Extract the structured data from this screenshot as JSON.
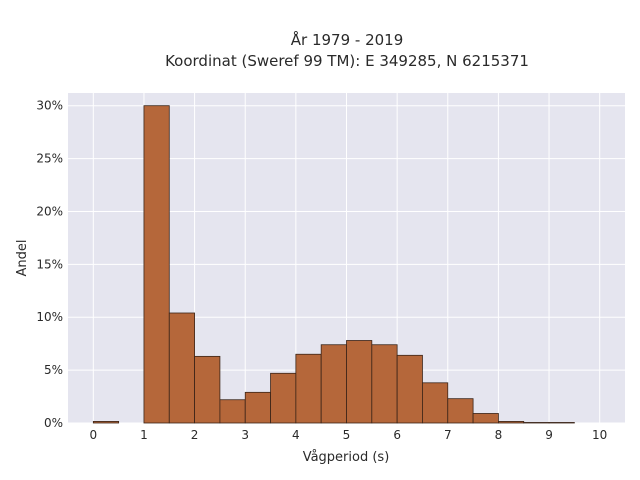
{
  "chart_data": {
    "type": "bar",
    "title_line1": "År 1979 - 2019",
    "title_line2": "Koordinat (Sweref 99 TM): E 349285, N 6215371",
    "xlabel": "Vågperiod (s)",
    "ylabel": "Andel",
    "bin_width": 0.5,
    "bins": [
      {
        "x0": 0.0,
        "value": 0.15
      },
      {
        "x0": 0.5,
        "value": 0.0
      },
      {
        "x0": 1.0,
        "value": 30.0
      },
      {
        "x0": 1.5,
        "value": 10.4
      },
      {
        "x0": 2.0,
        "value": 6.3
      },
      {
        "x0": 2.5,
        "value": 2.2
      },
      {
        "x0": 3.0,
        "value": 2.9
      },
      {
        "x0": 3.5,
        "value": 4.7
      },
      {
        "x0": 4.0,
        "value": 6.5
      },
      {
        "x0": 4.5,
        "value": 7.4
      },
      {
        "x0": 5.0,
        "value": 7.8
      },
      {
        "x0": 5.5,
        "value": 7.4
      },
      {
        "x0": 6.0,
        "value": 6.4
      },
      {
        "x0": 6.5,
        "value": 3.8
      },
      {
        "x0": 7.0,
        "value": 2.3
      },
      {
        "x0": 7.5,
        "value": 0.9
      },
      {
        "x0": 8.0,
        "value": 0.15
      },
      {
        "x0": 8.5,
        "value": 0.05
      },
      {
        "x0": 9.0,
        "value": 0.05
      }
    ],
    "xlim": [
      -0.5,
      10.5
    ],
    "ylim": [
      0,
      31.2
    ],
    "x_ticks": [
      0,
      1,
      2,
      3,
      4,
      5,
      6,
      7,
      8,
      9,
      10
    ],
    "x_tick_labels": [
      "0",
      "1",
      "2",
      "3",
      "4",
      "5",
      "6",
      "7",
      "8",
      "9",
      "10"
    ],
    "y_ticks": [
      0,
      5,
      10,
      15,
      20,
      25,
      30
    ],
    "y_tick_labels": [
      "0%",
      "5%",
      "10%",
      "15%",
      "20%",
      "25%",
      "30%"
    ],
    "grid": true,
    "colors": {
      "bar_fill": "#b5673a",
      "bar_stroke": "#3a2418",
      "plot_bg": "#e5e5ef",
      "grid": "#ffffff"
    }
  }
}
